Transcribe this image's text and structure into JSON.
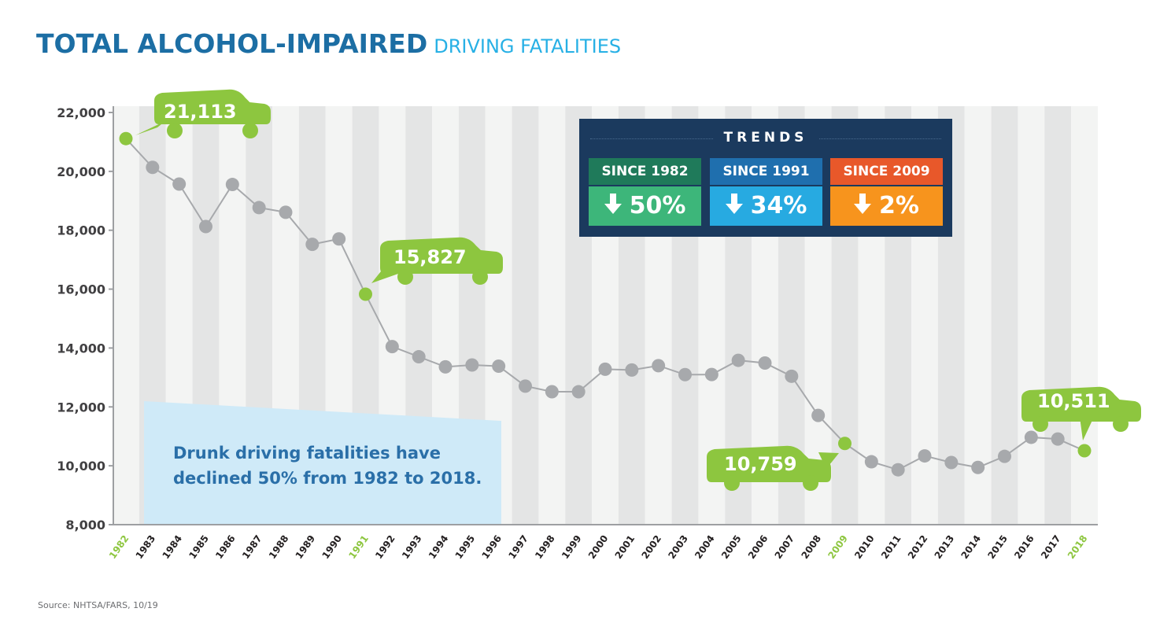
{
  "title": {
    "main": "TOTAL ALCOHOL-IMPAIRED",
    "sub": "DRIVING FATALITIES"
  },
  "source": "Source: NHTSA/FARS, 10/19",
  "colors": {
    "title": "#1c6ea4",
    "subtitle": "#27b0e5",
    "highlight": "#8dc63f",
    "line": "#a7a9ac",
    "stripe_light": "#f3f4f3",
    "stripe_dark": "#e4e5e5",
    "trends_bg": "#1b3a5e",
    "note_bg": "#cfeaf8",
    "note_text": "#2a6fa8"
  },
  "trends": {
    "heading": "TRENDS",
    "items": [
      {
        "label": "SINCE 1982",
        "value": "50%",
        "direction": "down",
        "icon": "down-arrow-icon",
        "label_color": "#1f7a5a",
        "value_color": "#3db67a"
      },
      {
        "label": "SINCE 1991",
        "value": "34%",
        "direction": "down",
        "icon": "down-arrow-icon",
        "label_color": "#1f6fae",
        "value_color": "#27aae1"
      },
      {
        "label": "SINCE 2009",
        "value": "2%",
        "direction": "down",
        "icon": "down-arrow-icon",
        "label_color": "#e8582a",
        "value_color": "#f7941d"
      }
    ]
  },
  "note": {
    "line1": "Drunk driving fatalities have",
    "line2": "declined 50% from 1982 to 2018."
  },
  "callouts": [
    {
      "year": "1982",
      "label": "21,113",
      "icon": "car-icon"
    },
    {
      "year": "1991",
      "label": "15,827",
      "icon": "car-icon"
    },
    {
      "year": "2009",
      "label": "10,759",
      "icon": "car-icon"
    },
    {
      "year": "2018",
      "label": "10,511",
      "icon": "car-icon"
    }
  ],
  "chart_data": {
    "type": "line",
    "title": "TOTAL ALCOHOL-IMPAIRED DRIVING FATALITIES",
    "xlabel": "",
    "ylabel": "",
    "ylim": [
      8000,
      22000
    ],
    "yticks": [
      "8,000",
      "10,000",
      "12,000",
      "14,000",
      "16,000",
      "18,000",
      "20,000",
      "22,000"
    ],
    "ytick_values": [
      8000,
      10000,
      12000,
      14000,
      16000,
      18000,
      20000,
      22000
    ],
    "grid": "alternating vertical stripes per year",
    "highlight_years": [
      "1982",
      "1991",
      "2009",
      "2018"
    ],
    "x": [
      "1982",
      "1983",
      "1984",
      "1985",
      "1986",
      "1987",
      "1988",
      "1989",
      "1990",
      "1991",
      "1992",
      "1993",
      "1994",
      "1995",
      "1996",
      "1997",
      "1998",
      "1999",
      "2000",
      "2001",
      "2002",
      "2003",
      "2004",
      "2005",
      "2006",
      "2007",
      "2008",
      "2009",
      "2010",
      "2011",
      "2012",
      "2013",
      "2014",
      "2015",
      "2016",
      "2017",
      "2018"
    ],
    "series": [
      {
        "name": "Alcohol-impaired driving fatalities",
        "values": [
          21113,
          20136,
          19569,
          18125,
          19554,
          18769,
          18611,
          17521,
          17705,
          15827,
          14049,
          13703,
          13360,
          13423,
          13384,
          12706,
          12515,
          12514,
          13281,
          13253,
          13401,
          13096,
          13099,
          13582,
          13491,
          13041,
          11711,
          10759,
          10136,
          9865,
          10336,
          10110,
          9943,
          10320,
          10967,
          10908,
          10511
        ]
      }
    ]
  }
}
